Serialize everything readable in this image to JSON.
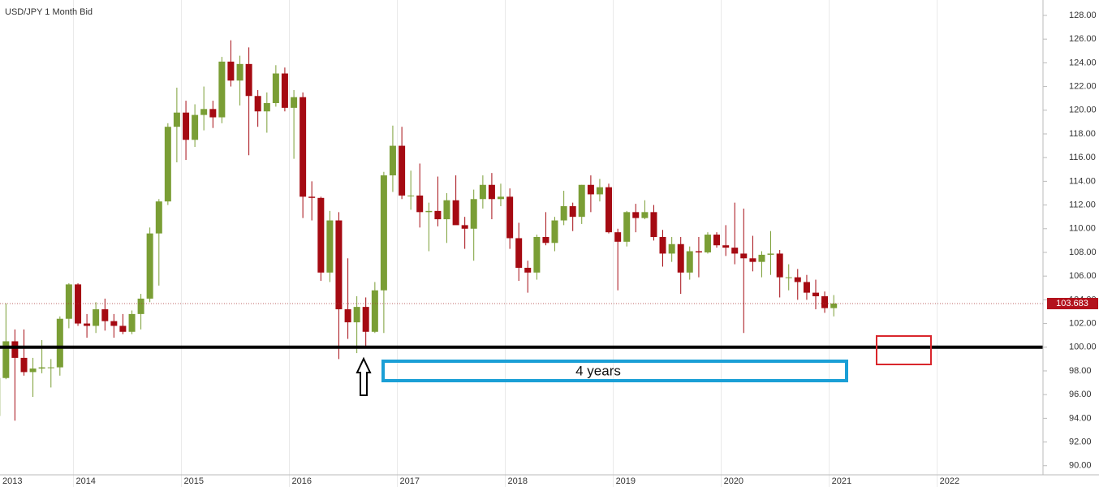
{
  "chart_data": {
    "type": "candlestick",
    "title": "USD/JPY  1 Month Bid",
    "x": [
      2013.292,
      2013.375,
      2013.458,
      2013.542,
      2013.625,
      2013.708,
      2013.792,
      2013.875,
      2013.958,
      2014.042,
      2014.125,
      2014.208,
      2014.292,
      2014.375,
      2014.458,
      2014.542,
      2014.625,
      2014.708,
      2014.792,
      2014.875,
      2014.958,
      2015.042,
      2015.125,
      2015.208,
      2015.292,
      2015.375,
      2015.458,
      2015.542,
      2015.625,
      2015.708,
      2015.792,
      2015.875,
      2015.958,
      2016.042,
      2016.125,
      2016.208,
      2016.292,
      2016.375,
      2016.458,
      2016.542,
      2016.625,
      2016.708,
      2016.792,
      2016.875,
      2016.958,
      2017.042,
      2017.125,
      2017.208,
      2017.292,
      2017.375,
      2017.458,
      2017.542,
      2017.625,
      2017.708,
      2017.792,
      2017.875,
      2017.958,
      2018.042,
      2018.125,
      2018.208,
      2018.292,
      2018.375,
      2018.458,
      2018.542,
      2018.625,
      2018.708,
      2018.792,
      2018.875,
      2018.958,
      2019.042,
      2019.125,
      2019.208,
      2019.292,
      2019.375,
      2019.458,
      2019.542,
      2019.625,
      2019.708,
      2019.792,
      2019.875,
      2019.958,
      2020.042,
      2020.125,
      2020.208,
      2020.292,
      2020.375,
      2020.458,
      2020.542,
      2020.625,
      2020.708,
      2020.792,
      2020.875,
      2020.958,
      2021.042
    ],
    "open": [
      94.2,
      97.4,
      100.5,
      99.1,
      97.9,
      98.2,
      98.3,
      98.3,
      102.4,
      105.3,
      102.0,
      101.8,
      103.2,
      102.2,
      101.8,
      101.3,
      102.8,
      104.1,
      109.6,
      112.3,
      118.6,
      119.8,
      117.5,
      119.6,
      120.1,
      119.4,
      124.1,
      122.5,
      123.9,
      121.2,
      119.9,
      120.6,
      123.1,
      120.2,
      121.1,
      112.7,
      112.6,
      106.3,
      110.7,
      103.2,
      102.1,
      103.4,
      101.3,
      104.8,
      114.5,
      117.0,
      112.8,
      112.8,
      111.4,
      111.5,
      110.8,
      112.4,
      110.3,
      110.0,
      112.5,
      113.7,
      112.5,
      112.7,
      109.2,
      106.7,
      106.3,
      109.3,
      108.8,
      110.7,
      111.9,
      111.0,
      113.7,
      112.9,
      113.5,
      109.7,
      108.9,
      111.4,
      110.9,
      111.4,
      109.3,
      107.9,
      108.7,
      106.3,
      108.1,
      108.0,
      109.5,
      108.6,
      108.4,
      107.9,
      107.5,
      107.2,
      107.8,
      107.9,
      105.9,
      105.9,
      105.5,
      104.6,
      104.3,
      103.3
    ],
    "high": [
      99.9,
      103.7,
      101.5,
      101.5,
      99.1,
      100.6,
      99.0,
      102.6,
      105.4,
      105.4,
      102.8,
      103.8,
      104.1,
      102.8,
      102.8,
      103.1,
      104.5,
      110.1,
      112.5,
      118.9,
      121.9,
      120.8,
      120.5,
      122.0,
      120.8,
      124.5,
      125.9,
      124.6,
      125.3,
      121.7,
      121.5,
      123.8,
      123.6,
      121.7,
      121.5,
      114.0,
      112.7,
      111.5,
      111.4,
      107.5,
      104.3,
      104.2,
      105.5,
      114.8,
      118.7,
      118.6,
      114.9,
      115.5,
      112.2,
      114.4,
      113.0,
      114.5,
      111.0,
      113.3,
      114.5,
      114.7,
      113.8,
      113.4,
      110.5,
      107.3,
      109.5,
      111.4,
      111.0,
      113.2,
      112.2,
      113.7,
      114.5,
      114.2,
      113.8,
      110.0,
      111.5,
      112.1,
      112.4,
      112.0,
      109.9,
      109.3,
      109.3,
      108.5,
      109.3,
      109.7,
      109.7,
      110.3,
      112.2,
      111.7,
      109.4,
      108.1,
      109.8,
      108.2,
      107.0,
      106.6,
      106.1,
      105.7,
      104.7,
      104.4
    ],
    "low": [
      92.6,
      97.3,
      93.8,
      97.6,
      95.8,
      97.8,
      96.6,
      97.6,
      101.6,
      101.8,
      100.8,
      101.2,
      101.4,
      100.8,
      101.1,
      101.1,
      101.5,
      103.8,
      105.2,
      112.0,
      115.6,
      115.8,
      116.9,
      118.3,
      118.5,
      118.9,
      122.0,
      120.4,
      116.2,
      118.6,
      118.1,
      120.3,
      119.9,
      115.9,
      110.9,
      110.7,
      105.6,
      105.5,
      99.0,
      100.7,
      99.5,
      100.1,
      101.2,
      101.2,
      113.1,
      112.5,
      111.6,
      110.1,
      108.1,
      110.2,
      108.8,
      110.6,
      108.3,
      107.3,
      111.7,
      110.8,
      111.9,
      108.3,
      105.6,
      104.6,
      105.7,
      108.6,
      108.1,
      110.3,
      109.8,
      110.4,
      111.4,
      112.3,
      109.6,
      104.8,
      108.5,
      109.7,
      110.8,
      109.0,
      106.8,
      107.2,
      104.5,
      105.7,
      105.9,
      107.9,
      108.4,
      107.7,
      107.0,
      101.2,
      106.4,
      105.9,
      106.1,
      104.2,
      104.8,
      104.0,
      104.0,
      103.2,
      102.9,
      102.6
    ],
    "close": [
      97.4,
      100.5,
      99.1,
      97.9,
      98.2,
      98.3,
      98.3,
      102.4,
      105.3,
      102.0,
      101.8,
      103.2,
      102.2,
      101.8,
      101.3,
      102.8,
      104.1,
      109.6,
      112.3,
      118.6,
      119.8,
      117.5,
      119.6,
      120.1,
      119.4,
      124.1,
      122.5,
      123.9,
      121.2,
      119.9,
      120.6,
      123.1,
      120.2,
      121.1,
      112.7,
      112.6,
      106.3,
      110.7,
      103.2,
      102.1,
      103.4,
      101.3,
      104.8,
      114.5,
      117.0,
      112.8,
      112.8,
      111.4,
      111.5,
      110.8,
      112.4,
      110.3,
      110.0,
      112.5,
      113.7,
      112.5,
      112.7,
      109.2,
      106.7,
      106.3,
      109.3,
      108.8,
      110.7,
      111.9,
      111.0,
      113.7,
      112.9,
      113.5,
      109.7,
      108.9,
      111.4,
      110.9,
      111.4,
      109.3,
      107.9,
      108.7,
      106.3,
      108.1,
      108.0,
      109.5,
      108.6,
      108.4,
      107.9,
      107.5,
      107.2,
      107.8,
      107.9,
      105.9,
      105.9,
      105.5,
      104.6,
      104.3,
      103.3,
      103.683
    ],
    "up_color": "#7a9e35",
    "down_color": "#a50a12",
    "xlim": [
      2013.32,
      2022.98
    ],
    "xticks": [
      2013,
      2014,
      2015,
      2016,
      2017,
      2018,
      2019,
      2020,
      2021,
      2022
    ],
    "ylim": [
      89.23,
      129.3
    ],
    "yticks": [
      {
        "value": 90,
        "label": "90.00"
      },
      {
        "value": 92,
        "label": "92.00"
      },
      {
        "value": 94,
        "label": "94.00"
      },
      {
        "value": 96,
        "label": "96.00"
      },
      {
        "value": 98,
        "label": "98.00"
      },
      {
        "value": 100,
        "label": "100.00"
      },
      {
        "value": 102,
        "label": "102.00"
      },
      {
        "value": 104,
        "label": "104.00"
      },
      {
        "value": 106,
        "label": "106.00"
      },
      {
        "value": 108,
        "label": "108.00"
      },
      {
        "value": 110,
        "label": "110.00"
      },
      {
        "value": 112,
        "label": "112.00"
      },
      {
        "value": 114,
        "label": "114.00"
      },
      {
        "value": 116,
        "label": "116.00"
      },
      {
        "value": 118,
        "label": "118.00"
      },
      {
        "value": 120,
        "label": "120.00"
      },
      {
        "value": 122,
        "label": "122.00"
      },
      {
        "value": 124,
        "label": "124.00"
      },
      {
        "value": 126,
        "label": "126.00"
      },
      {
        "value": 128,
        "label": "128.00"
      }
    ],
    "last": 103.683,
    "level_line": 100,
    "annotation": "4 years"
  }
}
